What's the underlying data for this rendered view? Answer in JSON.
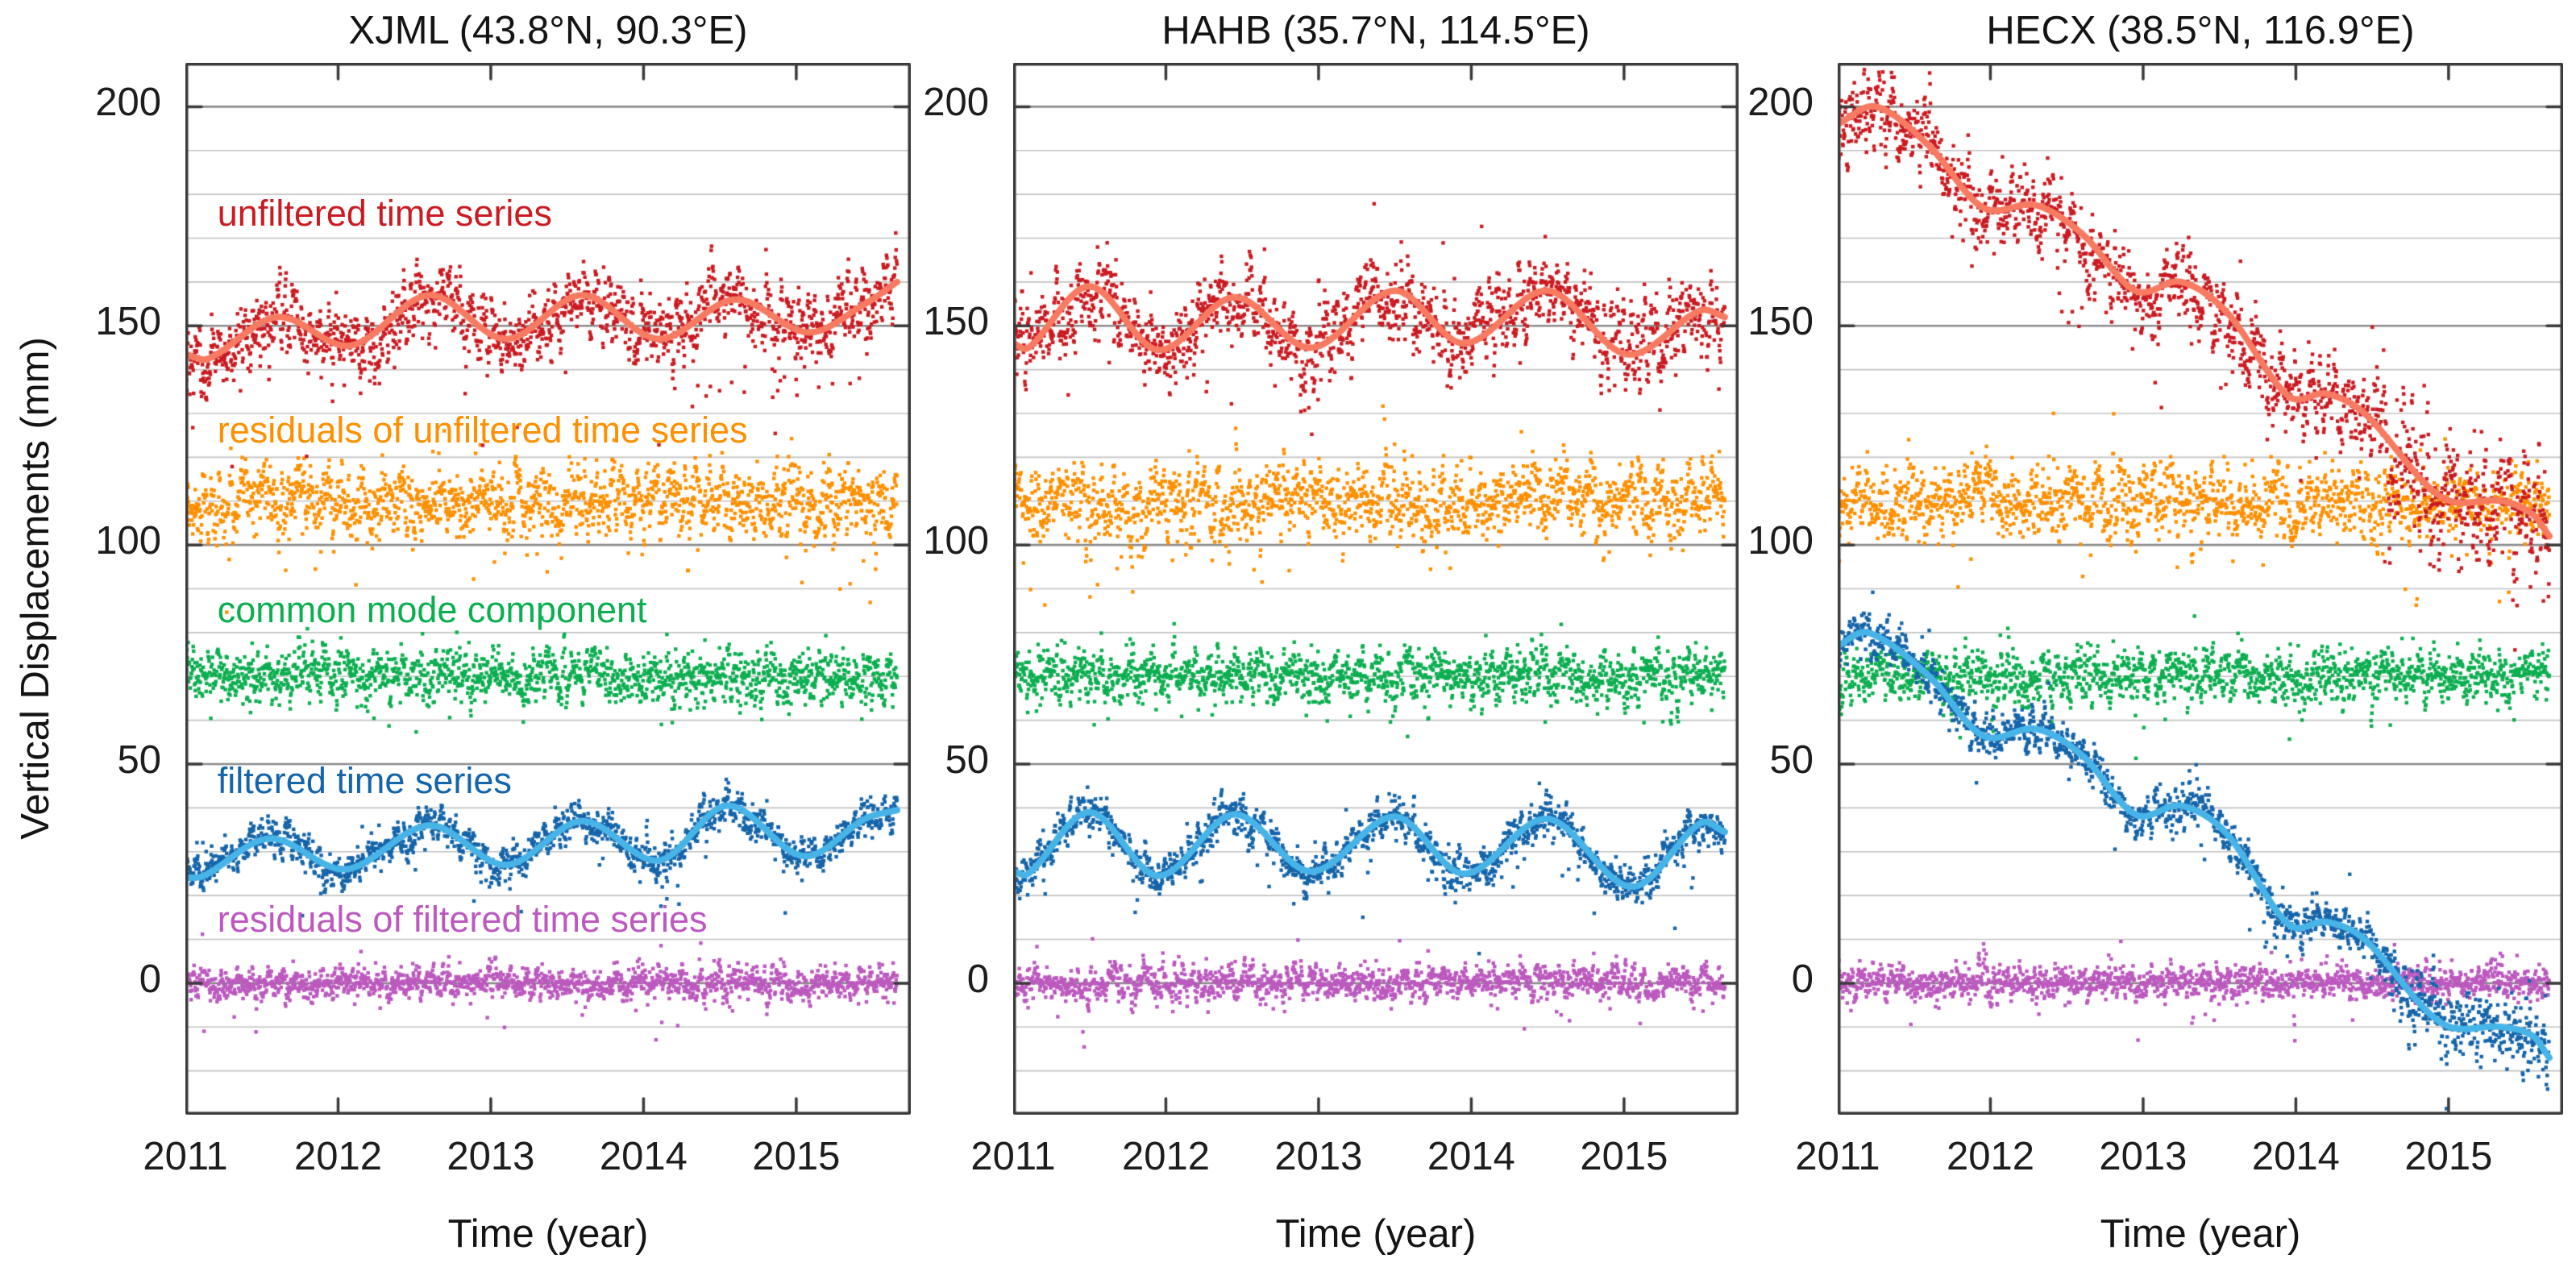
{
  "figure": {
    "ylabel": "Vertical Displacements (mm)",
    "background": "#ffffff",
    "axis_color": "#3a3a3a",
    "grid_minor_color": "#c3c3c3",
    "grid_major_color": "#8c8c8c",
    "text_color": "#141414"
  },
  "chart_data": [
    {
      "type": "scatter",
      "station": "XJML",
      "title": "XJML (43.8°N, 90.3°E)",
      "xlabel": "Time (year)",
      "xlim": [
        2011,
        2015.75
      ],
      "ylim": [
        -30,
        210
      ],
      "xticks": [
        2011,
        2012,
        2013,
        2014,
        2015
      ],
      "yticks": [
        0,
        50,
        100,
        150,
        200
      ],
      "grid_step": 10,
      "x_end": 2015.66,
      "series": [
        {
          "id": "unfiltered",
          "label": "unfiltered time series",
          "label_x": 2011.21,
          "label_y": 175,
          "scatter_color": "#cb1b21",
          "line_color": "#f87a61",
          "has_line": true,
          "zorder": 4,
          "trend": [
            [
              2011.0,
              143.5
            ],
            [
              2011.15,
              142.5
            ],
            [
              2011.6,
              152.0
            ],
            [
              2012.08,
              145.5
            ],
            [
              2012.6,
              157.0
            ],
            [
              2013.1,
              147.0
            ],
            [
              2013.6,
              157.0
            ],
            [
              2014.1,
              147.0
            ],
            [
              2014.6,
              156.0
            ],
            [
              2015.08,
              148.5
            ],
            [
              2015.45,
              155.0
            ],
            [
              2015.66,
              160.0
            ]
          ],
          "sigma": 3.4,
          "rho": 0.65,
          "out_p": 0.05,
          "out_scale": 8,
          "out_bias": -0.8,
          "seed": 101
        },
        {
          "id": "unfiltered_residuals",
          "label": "residuals of unfiltered time series",
          "label_x": 2011.21,
          "label_y": 125.5,
          "scatter_color": "#fe9000",
          "has_line": false,
          "zorder": 1,
          "offset": 110,
          "sigma": 3.4,
          "rho": 0.6,
          "out_p": 0.06,
          "out_scale": 7,
          "out_bias": -0.5,
          "seed": 102
        },
        {
          "id": "common_mode",
          "label": "common mode component",
          "label_x": 2011.21,
          "label_y": 84.5,
          "scatter_color": "#0caf50",
          "has_line": false,
          "zorder": 2,
          "offset": 70,
          "sigma": 2.7,
          "rho": 0.55,
          "out_p": 0.04,
          "out_scale": 5,
          "out_bias": -0.2,
          "seed": 103
        },
        {
          "id": "filtered",
          "label": "filtered time series",
          "label_x": 2011.21,
          "label_y": 45.5,
          "scatter_color": "#1565ab",
          "line_color": "#47b4e8",
          "has_line": true,
          "zorder": 5,
          "trend": [
            [
              2011.0,
              24.0
            ],
            [
              2011.12,
              24.5
            ],
            [
              2011.55,
              33.0
            ],
            [
              2012.05,
              26.0
            ],
            [
              2012.6,
              36.0
            ],
            [
              2013.1,
              27.0
            ],
            [
              2013.6,
              37.0
            ],
            [
              2014.1,
              28.0
            ],
            [
              2014.55,
              40.5
            ],
            [
              2015.05,
              29.0
            ],
            [
              2015.45,
              37.5
            ],
            [
              2015.66,
              39.5
            ]
          ],
          "sigma": 1.8,
          "rho": 0.6,
          "out_p": 0.04,
          "out_scale": 5,
          "out_bias": -0.5,
          "seed": 104
        },
        {
          "id": "filtered_residuals",
          "label": "residuals of filtered time series",
          "label_x": 2011.21,
          "label_y": 14,
          "scatter_color": "#bc59bf",
          "has_line": false,
          "zorder": 3,
          "offset": 0,
          "sigma": 1.6,
          "rho": 0.55,
          "out_p": 0.04,
          "out_scale": 4.5,
          "out_bias": -0.2,
          "seed": 105
        }
      ]
    },
    {
      "type": "scatter",
      "station": "HAHB",
      "title": "HAHB (35.7°N, 114.5°E)",
      "xlabel": "Time (year)",
      "xlim": [
        2011,
        2015.75
      ],
      "ylim": [
        -30,
        210
      ],
      "xticks": [
        2011,
        2012,
        2013,
        2014,
        2015
      ],
      "yticks": [
        0,
        50,
        100,
        150,
        200
      ],
      "grid_step": 10,
      "x_end": 2015.66,
      "series": [
        {
          "id": "unfiltered",
          "scatter_color": "#cb1b21",
          "line_color": "#f87a61",
          "has_line": true,
          "zorder": 4,
          "trend": [
            [
              2011.0,
              146.0
            ],
            [
              2011.1,
              145.0
            ],
            [
              2011.5,
              159.0
            ],
            [
              2011.95,
              144.5
            ],
            [
              2012.45,
              156.5
            ],
            [
              2012.95,
              145.0
            ],
            [
              2013.5,
              158.0
            ],
            [
              2013.95,
              146.0
            ],
            [
              2014.5,
              158.0
            ],
            [
              2015.02,
              143.5
            ],
            [
              2015.5,
              153.5
            ],
            [
              2015.66,
              152.0
            ]
          ],
          "sigma": 3.6,
          "rho": 0.65,
          "out_p": 0.05,
          "out_scale": 8,
          "out_bias": -0.6,
          "seed": 201
        },
        {
          "id": "unfiltered_residuals",
          "scatter_color": "#fe9000",
          "has_line": false,
          "zorder": 1,
          "offset": 110,
          "sigma": 3.6,
          "rho": 0.6,
          "out_p": 0.06,
          "out_scale": 7,
          "out_bias": -0.5,
          "seed": 202
        },
        {
          "id": "common_mode",
          "scatter_color": "#0caf50",
          "has_line": false,
          "zorder": 2,
          "offset": 70,
          "sigma": 2.7,
          "rho": 0.55,
          "out_p": 0.04,
          "out_scale": 5,
          "out_bias": -0.2,
          "seed": 203
        },
        {
          "id": "filtered",
          "scatter_color": "#1565ab",
          "line_color": "#47b4e8",
          "has_line": true,
          "zorder": 5,
          "trend": [
            [
              2011.0,
              25.5
            ],
            [
              2011.1,
              25.0
            ],
            [
              2011.5,
              39.0
            ],
            [
              2011.95,
              24.5
            ],
            [
              2012.45,
              38.5
            ],
            [
              2012.95,
              25.5
            ],
            [
              2013.5,
              38.0
            ],
            [
              2013.95,
              25.0
            ],
            [
              2014.5,
              37.5
            ],
            [
              2015.05,
              22.0
            ],
            [
              2015.5,
              36.5
            ],
            [
              2015.66,
              34.5
            ]
          ],
          "sigma": 1.9,
          "rho": 0.6,
          "out_p": 0.04,
          "out_scale": 5.5,
          "out_bias": -0.5,
          "seed": 204
        },
        {
          "id": "filtered_residuals",
          "scatter_color": "#bc59bf",
          "has_line": false,
          "zorder": 3,
          "offset": 0,
          "sigma": 1.7,
          "rho": 0.55,
          "out_p": 0.04,
          "out_scale": 4.5,
          "out_bias": -0.2,
          "seed": 205
        }
      ]
    },
    {
      "type": "scatter",
      "station": "HECX",
      "title": "HECX (38.5°N, 116.9°E)",
      "xlabel": "Time (year)",
      "xlim": [
        2011,
        2015.75
      ],
      "ylim": [
        -30,
        210
      ],
      "xticks": [
        2011,
        2012,
        2013,
        2014,
        2015
      ],
      "yticks": [
        0,
        50,
        100,
        150,
        200
      ],
      "grid_step": 10,
      "x_end": 2015.66,
      "series": [
        {
          "id": "unfiltered",
          "scatter_color": "#cb1b21",
          "line_color": "#f87a61",
          "has_line": true,
          "zorder": 4,
          "trend": [
            [
              2011.0,
              196.0
            ],
            [
              2011.25,
              200.0
            ],
            [
              2011.6,
              191.0
            ],
            [
              2011.95,
              177.0
            ],
            [
              2012.3,
              177.5
            ],
            [
              2012.6,
              171.0
            ],
            [
              2012.95,
              158.0
            ],
            [
              2013.25,
              160.0
            ],
            [
              2013.55,
              153.0
            ],
            [
              2013.95,
              134.0
            ],
            [
              2014.2,
              134.5
            ],
            [
              2014.45,
              130.0
            ],
            [
              2014.95,
              111.0
            ],
            [
              2015.35,
              110.0
            ],
            [
              2015.55,
              107.0
            ],
            [
              2015.66,
              102.0
            ]
          ],
          "sigma": 3.6,
          "rho": 0.65,
          "out_p": 0.05,
          "out_scale": 8,
          "out_bias": -0.7,
          "seed": 301,
          "end_boost": {
            "from": 2014.5,
            "factor": 1.7
          }
        },
        {
          "id": "unfiltered_residuals",
          "scatter_color": "#fe9000",
          "has_line": false,
          "zorder": 1,
          "offset": 110,
          "sigma": 3.5,
          "rho": 0.6,
          "out_p": 0.06,
          "out_scale": 7,
          "out_bias": -0.5,
          "seed": 302
        },
        {
          "id": "common_mode",
          "scatter_color": "#0caf50",
          "has_line": false,
          "zorder": 2,
          "offset": 70,
          "sigma": 2.7,
          "rho": 0.55,
          "out_p": 0.04,
          "out_scale": 5,
          "out_bias": -0.2,
          "seed": 303
        },
        {
          "id": "filtered",
          "scatter_color": "#1565ab",
          "line_color": "#47b4e8",
          "has_line": true,
          "zorder": 5,
          "trend": [
            [
              2011.0,
              77.0
            ],
            [
              2011.2,
              80.0
            ],
            [
              2011.6,
              70.0
            ],
            [
              2011.95,
              56.5
            ],
            [
              2012.3,
              58.0
            ],
            [
              2012.6,
              52.0
            ],
            [
              2012.95,
              38.5
            ],
            [
              2013.25,
              40.5
            ],
            [
              2013.55,
              34.0
            ],
            [
              2013.95,
              13.5
            ],
            [
              2014.2,
              14.0
            ],
            [
              2014.45,
              10.0
            ],
            [
              2014.95,
              -9.0
            ],
            [
              2015.35,
              -10.0
            ],
            [
              2015.55,
              -12.0
            ],
            [
              2015.66,
              -17.0
            ]
          ],
          "sigma": 2.0,
          "rho": 0.6,
          "out_p": 0.04,
          "out_scale": 5.5,
          "out_bias": -0.4,
          "seed": 304,
          "end_boost": {
            "from": 2014.6,
            "factor": 1.6
          }
        },
        {
          "id": "filtered_residuals",
          "scatter_color": "#bc59bf",
          "has_line": false,
          "zorder": 3,
          "offset": 0,
          "sigma": 1.7,
          "rho": 0.55,
          "out_p": 0.04,
          "out_scale": 4.5,
          "out_bias": -0.2,
          "seed": 305
        }
      ]
    }
  ]
}
